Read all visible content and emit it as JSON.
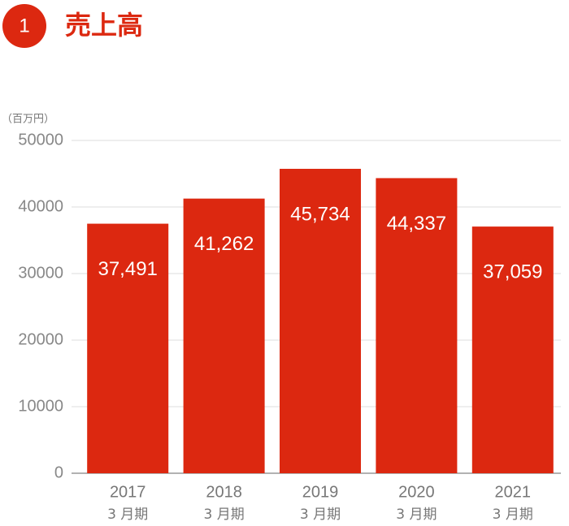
{
  "chart_data": {
    "type": "bar",
    "section_number": "1",
    "title": "売上高",
    "y_unit_label": "（百万円）",
    "categories": [
      "2017",
      "2018",
      "2019",
      "2020",
      "2021"
    ],
    "category_sublabels": [
      "3 月期",
      "3 月期",
      "3 月期",
      "3 月期",
      "3 月期"
    ],
    "values": [
      37491,
      41262,
      45734,
      44337,
      37059
    ],
    "value_labels": [
      "37,491",
      "41,262",
      "45,734",
      "44,337",
      "37,059"
    ],
    "color": "#dc2810",
    "ylim": [
      0,
      50000
    ],
    "yticks": [
      0,
      10000,
      20000,
      30000,
      40000,
      50000
    ],
    "grid": true
  }
}
